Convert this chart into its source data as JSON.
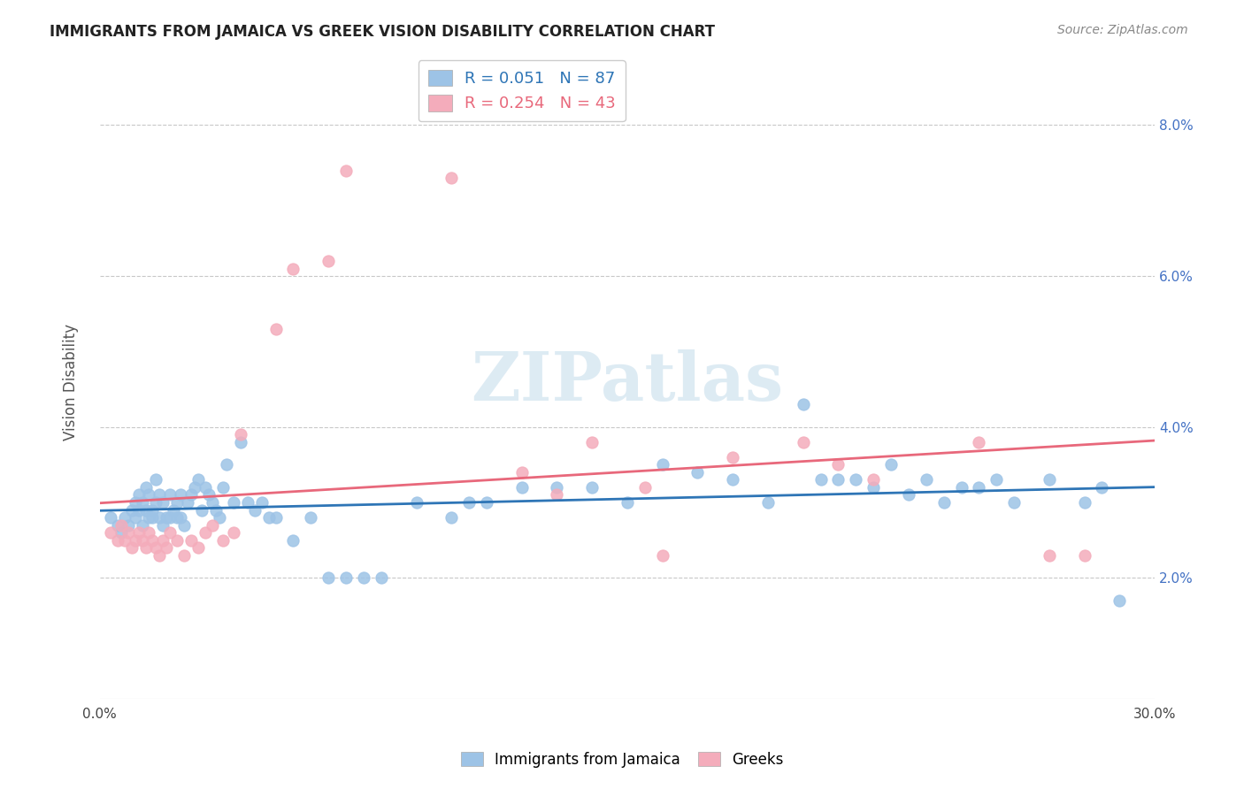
{
  "title": "IMMIGRANTS FROM JAMAICA VS GREEK VISION DISABILITY CORRELATION CHART",
  "source": "Source: ZipAtlas.com",
  "ylabel": "Vision Disability",
  "xlim": [
    0.0,
    0.3
  ],
  "ylim": [
    0.004,
    0.088
  ],
  "yticks": [
    0.02,
    0.04,
    0.06,
    0.08
  ],
  "ytick_labels": [
    "2.0%",
    "4.0%",
    "6.0%",
    "8.0%"
  ],
  "xticks": [
    0.0,
    0.05,
    0.1,
    0.15,
    0.2,
    0.25,
    0.3
  ],
  "xtick_labels": [
    "0.0%",
    "",
    "",
    "",
    "",
    "",
    "30.0%"
  ],
  "blue_R": 0.051,
  "blue_N": 87,
  "pink_R": 0.254,
  "pink_N": 43,
  "blue_color": "#9DC3E6",
  "pink_color": "#F4ACBB",
  "blue_line_color": "#2E75B6",
  "pink_line_color": "#E8687B",
  "legend_label_blue": "Immigrants from Jamaica",
  "legend_label_pink": "Greeks",
  "blue_scatter_x": [
    0.003,
    0.005,
    0.006,
    0.007,
    0.008,
    0.009,
    0.01,
    0.01,
    0.011,
    0.011,
    0.012,
    0.012,
    0.013,
    0.013,
    0.014,
    0.014,
    0.015,
    0.015,
    0.016,
    0.016,
    0.017,
    0.017,
    0.018,
    0.018,
    0.019,
    0.02,
    0.02,
    0.021,
    0.022,
    0.022,
    0.023,
    0.023,
    0.024,
    0.025,
    0.026,
    0.027,
    0.028,
    0.029,
    0.03,
    0.031,
    0.032,
    0.033,
    0.034,
    0.035,
    0.036,
    0.038,
    0.04,
    0.042,
    0.044,
    0.046,
    0.048,
    0.05,
    0.055,
    0.06,
    0.065,
    0.07,
    0.075,
    0.08,
    0.09,
    0.1,
    0.105,
    0.11,
    0.12,
    0.13,
    0.14,
    0.15,
    0.16,
    0.17,
    0.18,
    0.19,
    0.2,
    0.205,
    0.21,
    0.215,
    0.22,
    0.225,
    0.23,
    0.235,
    0.24,
    0.245,
    0.25,
    0.255,
    0.26,
    0.27,
    0.28,
    0.285,
    0.29
  ],
  "blue_scatter_y": [
    0.028,
    0.027,
    0.026,
    0.028,
    0.027,
    0.029,
    0.028,
    0.03,
    0.029,
    0.031,
    0.027,
    0.03,
    0.029,
    0.032,
    0.028,
    0.031,
    0.029,
    0.028,
    0.03,
    0.033,
    0.028,
    0.031,
    0.027,
    0.03,
    0.028,
    0.028,
    0.031,
    0.029,
    0.03,
    0.028,
    0.028,
    0.031,
    0.027,
    0.03,
    0.031,
    0.032,
    0.033,
    0.029,
    0.032,
    0.031,
    0.03,
    0.029,
    0.028,
    0.032,
    0.035,
    0.03,
    0.038,
    0.03,
    0.029,
    0.03,
    0.028,
    0.028,
    0.025,
    0.028,
    0.02,
    0.02,
    0.02,
    0.02,
    0.03,
    0.028,
    0.03,
    0.03,
    0.032,
    0.032,
    0.032,
    0.03,
    0.035,
    0.034,
    0.033,
    0.03,
    0.043,
    0.033,
    0.033,
    0.033,
    0.032,
    0.035,
    0.031,
    0.033,
    0.03,
    0.032,
    0.032,
    0.033,
    0.03,
    0.033,
    0.03,
    0.032,
    0.017
  ],
  "pink_scatter_x": [
    0.003,
    0.005,
    0.006,
    0.007,
    0.008,
    0.009,
    0.01,
    0.011,
    0.012,
    0.013,
    0.014,
    0.015,
    0.016,
    0.017,
    0.018,
    0.019,
    0.02,
    0.022,
    0.024,
    0.026,
    0.028,
    0.03,
    0.032,
    0.035,
    0.038,
    0.04,
    0.05,
    0.055,
    0.065,
    0.07,
    0.1,
    0.12,
    0.13,
    0.14,
    0.155,
    0.16,
    0.18,
    0.2,
    0.21,
    0.22,
    0.25,
    0.27,
    0.28
  ],
  "pink_scatter_y": [
    0.026,
    0.025,
    0.027,
    0.025,
    0.026,
    0.024,
    0.025,
    0.026,
    0.025,
    0.024,
    0.026,
    0.025,
    0.024,
    0.023,
    0.025,
    0.024,
    0.026,
    0.025,
    0.023,
    0.025,
    0.024,
    0.026,
    0.027,
    0.025,
    0.026,
    0.039,
    0.053,
    0.061,
    0.062,
    0.074,
    0.073,
    0.034,
    0.031,
    0.038,
    0.032,
    0.023,
    0.036,
    0.038,
    0.035,
    0.033,
    0.038,
    0.023,
    0.023
  ]
}
